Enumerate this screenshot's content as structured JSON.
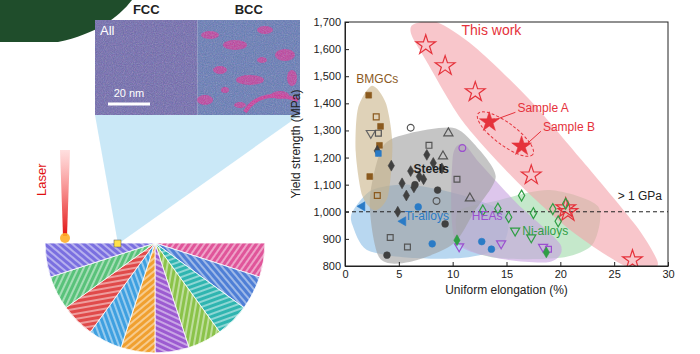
{
  "chart_data": {
    "type": "scatter",
    "x_label": "Uniform elongation (%)",
    "y_label": "Yield strength (MPa)",
    "xlim": [
      0,
      30
    ],
    "xticks": [
      0,
      5,
      10,
      15,
      20,
      25,
      30
    ],
    "ylim": [
      800,
      1700
    ],
    "yticks": [
      800,
      900,
      {
        "value": 1000,
        "label": "1,000"
      },
      {
        "value": 1100,
        "label": "1,100"
      },
      {
        "value": 1200,
        "label": "1,200"
      },
      {
        "value": 1300,
        "label": "1,300"
      },
      {
        "value": 1400,
        "label": "1,400"
      },
      {
        "value": 1500,
        "label": "1,500"
      },
      {
        "value": 1600,
        "label": "1,600"
      },
      {
        "value": 1700,
        "label": "1,700"
      }
    ],
    "grid": false,
    "reference_line": {
      "value": 1000,
      "label": "> 1 GPa"
    },
    "regions": [
      {
        "color": "#88bde6",
        "x": [
          0.7,
          2.5,
          6,
          11,
          15,
          14.5,
          11,
          6,
          2,
          0.7
        ],
        "values": [
          1000,
          1080,
          1100,
          1060,
          990,
          870,
          830,
          830,
          860,
          950
        ]
      },
      {
        "color": "#9fd8a8",
        "x": [
          10.5,
          14,
          19,
          23.5,
          23,
          20,
          14,
          10.8
        ],
        "values": [
          1000,
          1040,
          1080,
          1020,
          880,
          830,
          830,
          880
        ]
      },
      {
        "color": "#c7a0e0",
        "x": [
          10,
          11,
          12.5,
          16,
          20,
          19,
          14,
          10.2
        ],
        "values": [
          1200,
          1250,
          1180,
          1030,
          880,
          815,
          830,
          900
        ]
      },
      {
        "color": "#9e9e9e",
        "x": [
          2.3,
          3.5,
          6,
          10,
          12,
          14,
          12,
          10,
          6,
          3.2
        ],
        "values": [
          1040,
          1240,
          1290,
          1310,
          1250,
          1130,
          1000,
          880,
          815,
          830
        ]
      },
      {
        "color": "#c9b489",
        "x": [
          1.2,
          2.5,
          3.8,
          4.4,
          4.0,
          2.8,
          1.6,
          1.0
        ],
        "values": [
          1380,
          1465,
          1400,
          1250,
          1060,
          1005,
          1060,
          1220
        ]
      },
      {
        "color": "#f4a0a8",
        "x": [
          6.3,
          8.5,
          12,
          17,
          22,
          27,
          29,
          28.5,
          26,
          21,
          16,
          11,
          7.5,
          6.2
        ],
        "values": [
          1690,
          1700,
          1610,
          1420,
          1190,
          950,
          820,
          790,
          800,
          930,
          1110,
          1330,
          1560,
          1650
        ]
      }
    ],
    "series": [
      {
        "color": "#e5323b",
        "marker": "star-open",
        "x": [
          7.5,
          9.3,
          12.1,
          17.3,
          20.5,
          20.7,
          26.7
        ],
        "values": [
          1615,
          1538,
          1442,
          1135,
          1014,
          1000,
          822
        ]
      },
      {
        "color": "#e5323b",
        "marker": "star",
        "x": [
          13.4,
          16.4
        ],
        "values": [
          1331,
          1242
        ]
      },
      {
        "color": "#8b5a1e",
        "marker": "square",
        "x": [
          2.2,
          3.3,
          3.2,
          2.3
        ],
        "values": [
          1430,
          1315,
          1245,
          1130
        ]
      },
      {
        "color": "#8b5a1e",
        "marker": "square-open",
        "x": [
          2.9,
          3.0
        ],
        "values": [
          1350,
          1060
        ]
      },
      {
        "color": "#666666",
        "marker": "triangle-down-open",
        "x": [
          2.4
        ],
        "values": [
          1290
        ]
      },
      {
        "color": "#404040",
        "marker": "diamond",
        "x": [
          3.0,
          4.3,
          5.3,
          6.1,
          6.4,
          6.9,
          7.6,
          8.2,
          5.7,
          4.9,
          7.3,
          9.0
        ],
        "values": [
          1225,
          1170,
          1105,
          1150,
          1090,
          1130,
          1210,
          1180,
          1060,
          1000,
          1120,
          1160
        ]
      },
      {
        "color": "#404040",
        "marker": "circle",
        "x": [
          3.9,
          9.3,
          6.5,
          8.6
        ],
        "values": [
          840,
          955,
          1100,
          1080
        ]
      },
      {
        "color": "#555555",
        "marker": "square-open",
        "x": [
          3.1,
          4.2,
          10.4,
          5.8,
          7.8
        ],
        "values": [
          1290,
          905,
          1120,
          870,
          1245
        ]
      },
      {
        "color": "#555555",
        "marker": "triangle-open",
        "x": [
          9.1,
          11.6,
          9.6
        ],
        "values": [
          1205,
          1050,
          1290
        ]
      },
      {
        "color": "#555555",
        "marker": "circle-open",
        "x": [
          6.1,
          8.5
        ],
        "values": [
          1310,
          1040
        ]
      },
      {
        "color": "#2a7bc6",
        "marker": "triangle-left",
        "x": [
          1.6,
          5.4
        ],
        "values": [
          1020,
          965
        ]
      },
      {
        "color": "#2a7bc6",
        "marker": "square",
        "x": [
          3.1
        ],
        "values": [
          1215
        ]
      },
      {
        "color": "#2a7bc6",
        "marker": "circle",
        "x": [
          6.8,
          8.1,
          13.6,
          12.7
        ],
        "values": [
          1018,
          882,
          862,
          890
        ]
      },
      {
        "color": "#9b4fcf",
        "marker": "circle-open",
        "x": [
          10.9
        ],
        "values": [
          1235
        ]
      },
      {
        "color": "#9b4fcf",
        "marker": "triangle-down-open",
        "x": [
          10.6,
          14.5,
          18.4
        ],
        "values": [
          872,
          883,
          870
        ]
      },
      {
        "color": "#9b4fcf",
        "marker": "square-open",
        "x": [
          18.9
        ],
        "values": [
          862
        ]
      },
      {
        "color": "#2f9e44",
        "marker": "diamond-open",
        "x": [
          12.8,
          15.2,
          16.4,
          17.5,
          19.3,
          19.8,
          14.2,
          20.5
        ],
        "values": [
          1005,
          980,
          1060,
          995,
          1010,
          965,
          1012,
          1030
        ]
      },
      {
        "color": "#2f9e44",
        "marker": "diamond",
        "x": [
          10.4,
          18.7
        ],
        "values": [
          895,
          850
        ]
      },
      {
        "color": "#2f9e44",
        "marker": "triangle-down-open",
        "x": [
          15.8,
          17.3
        ],
        "values": [
          930,
          905
        ]
      }
    ],
    "annotations": [
      {
        "text": "This work",
        "x": 13.6,
        "y": 1665,
        "color": "#e5323b"
      },
      {
        "text": "BMGCs",
        "x": 3.0,
        "y": 1487,
        "color": "#8b5a1e"
      },
      {
        "text": "Steels",
        "x": 8.0,
        "y": 1154,
        "color": "#222222"
      },
      {
        "text": "Ti-alloys",
        "x": 7.6,
        "y": 980,
        "color": "#2a7bc6"
      },
      {
        "text": "HEAs",
        "x": 13.2,
        "y": 980,
        "color": "#9b4fcf"
      },
      {
        "text": "Ni-alloys",
        "x": 18.6,
        "y": 925,
        "color": "#2f9e44"
      },
      {
        "text": "Sample A",
        "x": 18.4,
        "y": 1378,
        "color": "#e5323b",
        "arrow_x": 13.4,
        "arrow_y": 1331
      },
      {
        "text": "Sample B",
        "x": 20.8,
        "y": 1308,
        "color": "#e5323b",
        "arrow_x": 16.4,
        "arrow_y": 1242
      }
    ]
  },
  "micrograph": {
    "labels": [
      "FCC",
      "BCC"
    ],
    "element": "All",
    "scale_bar": "20 nm"
  },
  "diagram": {
    "label": "Laser"
  }
}
